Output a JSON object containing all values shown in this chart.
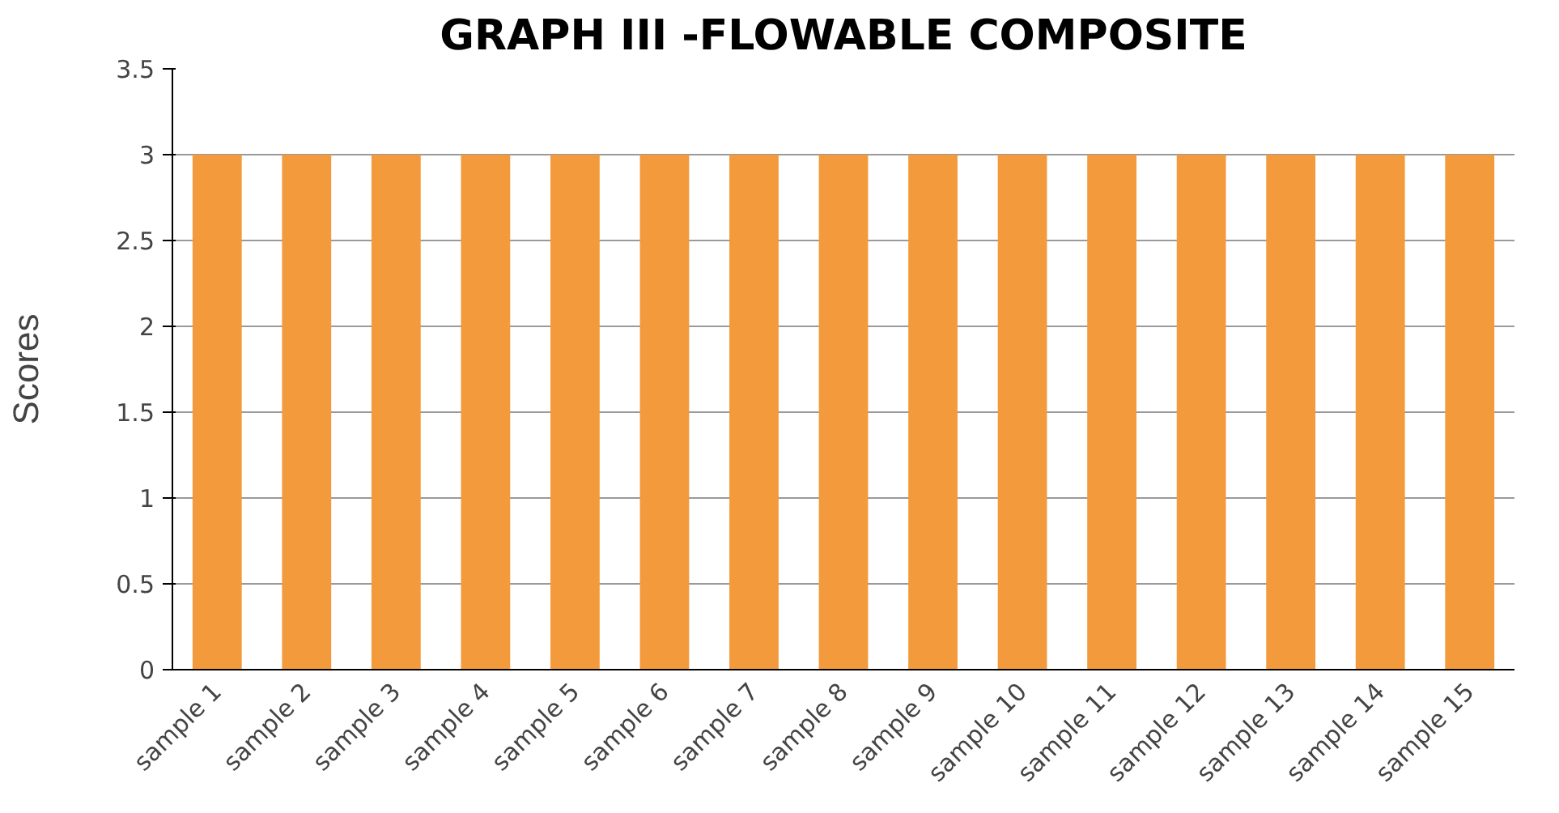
{
  "chart_data": {
    "type": "bar",
    "title": "GRAPH III -FLOWABLE COMPOSITE",
    "ylabel": "Scores",
    "categories": [
      "sample 1",
      "sample 2",
      "sample 3",
      "sample 4",
      "sample 5",
      "sample 6",
      "sample 7",
      "sample 8",
      "sample 9",
      "sample 10",
      "sample 11",
      "sample 12",
      "sample 13",
      "sample 14",
      "sample 15"
    ],
    "values": [
      3,
      3,
      3,
      3,
      3,
      3,
      3,
      3,
      3,
      3,
      3,
      3,
      3,
      3,
      3
    ],
    "color": "#f39a3c",
    "ylim": [
      0,
      3.5
    ],
    "yticks": [
      0,
      0.5,
      1,
      1.5,
      2,
      2.5,
      3,
      3.5
    ],
    "grid": "y"
  }
}
